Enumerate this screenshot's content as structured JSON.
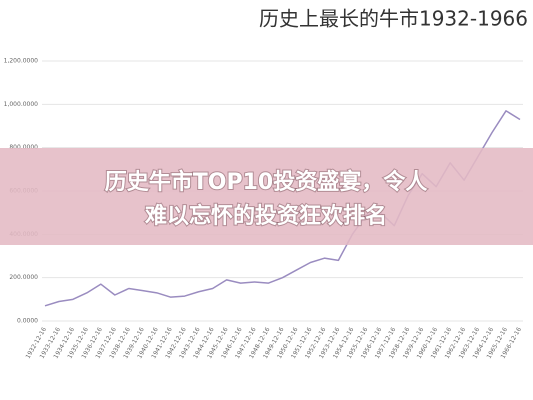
{
  "chart_data": {
    "type": "line",
    "title": "历史上最长的牛市1932-1966",
    "categories": [
      "1932-12-16",
      "1933-12-16",
      "1934-12-16",
      "1935-12-16",
      "1936-12-16",
      "1937-12-16",
      "1938-12-16",
      "1939-12-16",
      "1940-12-16",
      "1941-12-16",
      "1942-12-16",
      "1943-12-16",
      "1944-12-16",
      "1945-12-16",
      "1946-12-16",
      "1947-12-16",
      "1948-12-16",
      "1949-12-16",
      "1950-12-16",
      "1951-12-16",
      "1952-12-16",
      "1953-12-16",
      "1954-12-16",
      "1955-12-16",
      "1956-12-16",
      "1957-12-16",
      "1958-12-16",
      "1959-12-16",
      "1960-12-16",
      "1961-12-16",
      "1962-12-16",
      "1963-12-16",
      "1964-12-16",
      "1965-12-16",
      "1966-12-16"
    ],
    "values": [
      70,
      90,
      100,
      130,
      170,
      120,
      150,
      140,
      130,
      110,
      115,
      135,
      150,
      190,
      175,
      180,
      175,
      200,
      235,
      270,
      290,
      280,
      400,
      490,
      500,
      440,
      580,
      680,
      620,
      730,
      650,
      760,
      870,
      970,
      930
    ],
    "color": "#9a8cc0",
    "ylim": [
      0,
      1200
    ],
    "yticks": [
      {
        "value": 0,
        "label": "0.0000"
      },
      {
        "value": 200,
        "label": "200.0000"
      },
      {
        "value": 400,
        "label": "400.0000"
      },
      {
        "value": 600,
        "label": "600.0000"
      },
      {
        "value": 800,
        "label": "800.0000"
      },
      {
        "value": 1000,
        "label": "1,000.0000"
      },
      {
        "value": 1200,
        "label": "1,200.0000"
      }
    ],
    "grid": true
  },
  "banner": {
    "lines": [
      "历史牛市TOP10投资盛宴，令人",
      "难以忘怀的投资狂欢排名"
    ]
  }
}
